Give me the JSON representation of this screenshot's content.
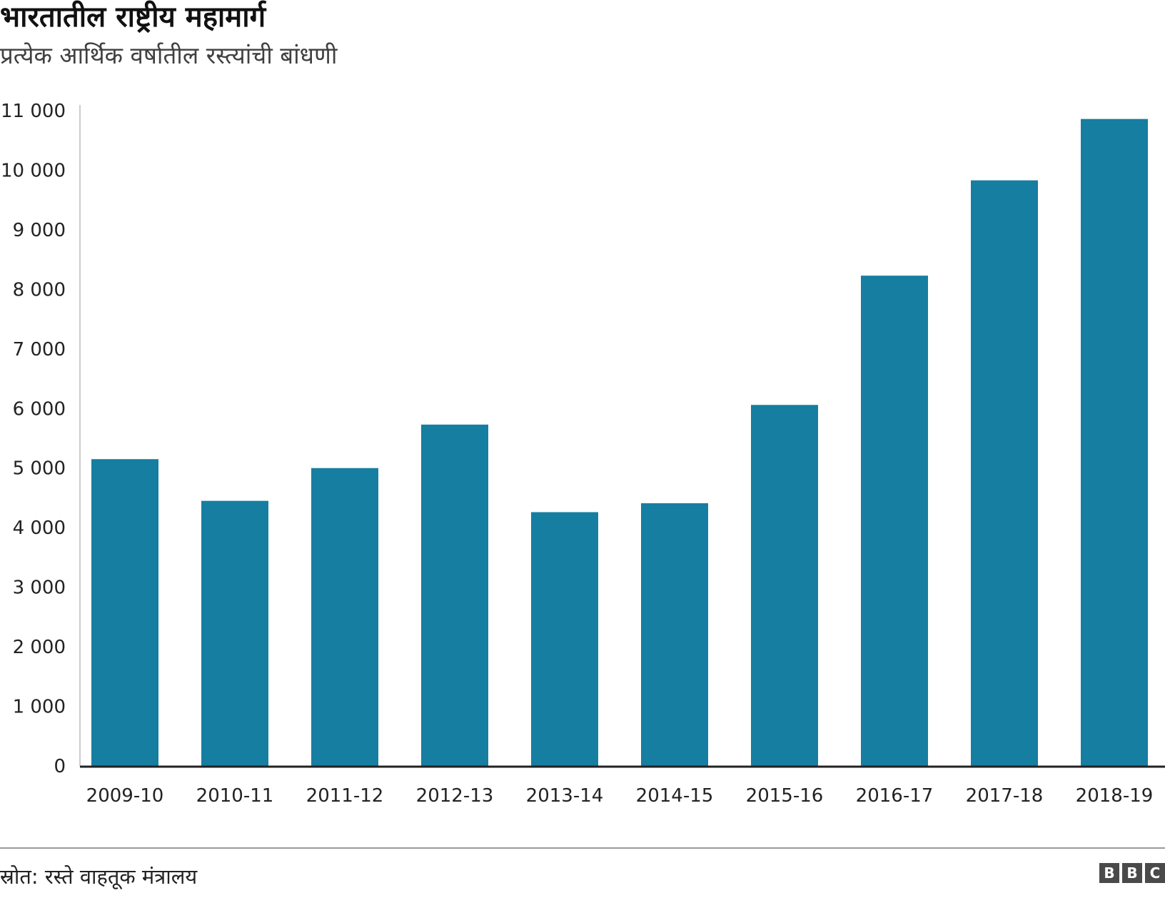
{
  "title": "भारतातील राष्ट्रीय महामार्ग",
  "subtitle": "प्रत्येक आर्थिक वर्षातील रस्त्यांची बांधणी",
  "source": "स्रोत: रस्ते वाहतूक मंत्रालय",
  "logo": [
    "B",
    "B",
    "C"
  ],
  "colors": {
    "bar": "#157ea1",
    "axis": "#222222",
    "gridline": "#cccccc"
  },
  "chart_data": {
    "type": "bar",
    "categories": [
      "2009-10",
      "2010-11",
      "2011-12",
      "2012-13",
      "2013-14",
      "2014-15",
      "2015-16",
      "2016-17",
      "2017-18",
      "2018-19"
    ],
    "values": [
      5150,
      4450,
      5000,
      5730,
      4260,
      4410,
      6060,
      8230,
      9830,
      10860
    ],
    "ylim": [
      0,
      11000
    ],
    "yticks": [
      0,
      1000,
      2000,
      3000,
      4000,
      5000,
      6000,
      7000,
      8000,
      9000,
      10000,
      11000
    ],
    "ytick_labels": [
      "0",
      "1 000",
      "2 000",
      "3 000",
      "4 000",
      "5 000",
      "6 000",
      "7 000",
      "8 000",
      "9 000",
      "10 000",
      "11 000"
    ],
    "xlabel": "",
    "ylabel": "",
    "grid": false
  }
}
